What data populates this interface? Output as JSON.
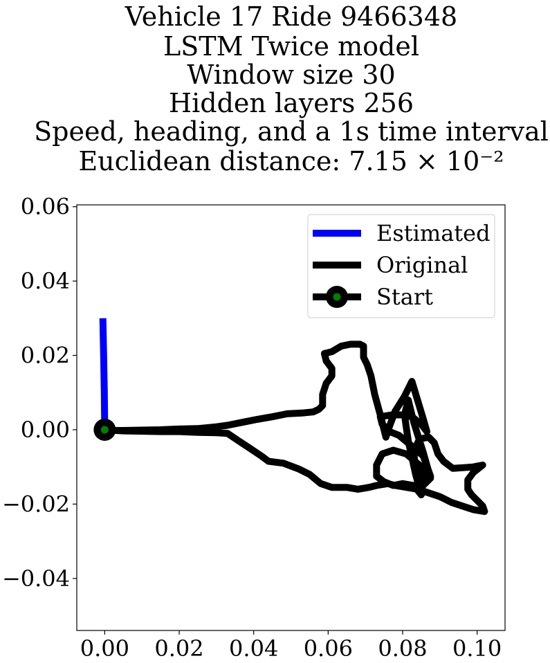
{
  "chart_data": {
    "type": "line",
    "title_lines": [
      "Vehicle 17 Ride 9466348",
      "LSTM Twice model",
      "Window size 30",
      "Hidden layers 256",
      "Speed, heading, and a 1s time interval",
      "Euclidean distance: 7.15 × 10⁻²"
    ],
    "xlabel": "",
    "ylabel": "",
    "xlim": [
      -0.0075,
      0.1075
    ],
    "ylim": [
      -0.054,
      0.0605
    ],
    "xticks": [
      0.0,
      0.02,
      0.04,
      0.06,
      0.08,
      0.1
    ],
    "xtick_labels": [
      "0.00",
      "0.02",
      "0.04",
      "0.06",
      "0.08",
      "0.10"
    ],
    "yticks": [
      0.06,
      0.04,
      0.02,
      0.0,
      -0.02,
      -0.04
    ],
    "ytick_labels": [
      "0.06",
      "0.04",
      "0.02",
      "0.00",
      "−0.02",
      "−0.04"
    ],
    "grid": false,
    "legend_position": "upper-right",
    "series": [
      {
        "name": "Estimated",
        "color": "#0000ff",
        "points": [
          [
            -0.0005,
            0.03
          ],
          [
            -0.0003,
            0.02
          ],
          [
            -0.0001,
            0.01
          ],
          [
            0.0,
            0.0
          ]
        ]
      },
      {
        "name": "Original",
        "color": "#000000",
        "points": [
          [
            0.0,
            0.0
          ],
          [
            0.005,
            -0.0003
          ],
          [
            0.01,
            -0.0004
          ],
          [
            0.015,
            -0.0005
          ],
          [
            0.02,
            -0.0005
          ],
          [
            0.025,
            -0.0007
          ],
          [
            0.03,
            -0.0008
          ],
          [
            0.033,
            -0.001
          ],
          [
            0.036,
            -0.003
          ],
          [
            0.039,
            -0.005
          ],
          [
            0.042,
            -0.007
          ],
          [
            0.044,
            -0.0085
          ],
          [
            0.048,
            -0.009
          ],
          [
            0.052,
            -0.0105
          ],
          [
            0.055,
            -0.012
          ],
          [
            0.058,
            -0.0145
          ],
          [
            0.061,
            -0.0155
          ],
          [
            0.065,
            -0.0155
          ],
          [
            0.068,
            -0.016
          ],
          [
            0.071,
            -0.0155
          ],
          [
            0.073,
            -0.015
          ],
          [
            0.076,
            -0.0145
          ],
          [
            0.078,
            -0.015
          ],
          [
            0.081,
            -0.0155
          ],
          [
            0.084,
            -0.016
          ],
          [
            0.087,
            -0.017
          ],
          [
            0.09,
            -0.018
          ],
          [
            0.093,
            -0.0195
          ],
          [
            0.096,
            -0.0205
          ],
          [
            0.099,
            -0.0215
          ],
          [
            0.102,
            -0.022
          ],
          [
            0.1015,
            -0.0205
          ],
          [
            0.1,
            -0.019
          ],
          [
            0.0985,
            -0.0175
          ],
          [
            0.0975,
            -0.016
          ],
          [
            0.0975,
            -0.0135
          ],
          [
            0.099,
            -0.0115
          ],
          [
            0.1015,
            -0.0095
          ],
          [
            0.099,
            -0.01
          ],
          [
            0.0965,
            -0.0102
          ],
          [
            0.0935,
            -0.0104
          ],
          [
            0.091,
            -0.0085
          ],
          [
            0.0895,
            -0.0065
          ],
          [
            0.0885,
            -0.0035
          ],
          [
            0.087,
            -0.002
          ],
          [
            0.0845,
            -0.0025
          ],
          [
            0.083,
            -0.006
          ],
          [
            0.0835,
            -0.011
          ],
          [
            0.0855,
            -0.015
          ],
          [
            0.0875,
            -0.013
          ],
          [
            0.0855,
            -0.006
          ],
          [
            0.083,
            0.002
          ],
          [
            0.0815,
            0.008
          ],
          [
            0.0805,
            0.004
          ],
          [
            0.0815,
            -0.003
          ],
          [
            0.0835,
            -0.012
          ],
          [
            0.085,
            -0.0175
          ],
          [
            0.083,
            -0.015
          ],
          [
            0.08,
            -0.0145
          ],
          [
            0.0775,
            -0.015
          ],
          [
            0.075,
            -0.014
          ],
          [
            0.073,
            -0.0125
          ],
          [
            0.073,
            -0.0095
          ],
          [
            0.0745,
            -0.0065
          ],
          [
            0.0775,
            -0.0055
          ],
          [
            0.081,
            -0.0065
          ],
          [
            0.0845,
            -0.0095
          ],
          [
            0.0865,
            -0.0135
          ],
          [
            0.0875,
            -0.0125
          ],
          [
            0.0855,
            -0.007
          ],
          [
            0.082,
            -0.004
          ],
          [
            0.079,
            -0.0015
          ],
          [
            0.0765,
            -0.0005
          ],
          [
            0.0745,
            0.0015
          ],
          [
            0.074,
            0.0035
          ],
          [
            0.077,
            0.004
          ],
          [
            0.08,
            0.004
          ],
          [
            0.0825,
            0.0035
          ],
          [
            0.085,
            0.0015
          ],
          [
            0.0865,
            -0.0005
          ],
          [
            0.0855,
            0.003
          ],
          [
            0.084,
            0.008
          ],
          [
            0.0825,
            0.013
          ],
          [
            0.0805,
            0.009
          ],
          [
            0.078,
            0.005
          ],
          [
            0.0765,
            0.001
          ],
          [
            0.0755,
            -0.002
          ],
          [
            0.074,
            0.004
          ],
          [
            0.0725,
            0.0095
          ],
          [
            0.0715,
            0.0145
          ],
          [
            0.0705,
            0.0175
          ],
          [
            0.0695,
            0.0195
          ],
          [
            0.0695,
            0.0225
          ],
          [
            0.0685,
            0.023
          ],
          [
            0.066,
            0.023
          ],
          [
            0.0635,
            0.0225
          ],
          [
            0.061,
            0.021
          ],
          [
            0.059,
            0.0205
          ],
          [
            0.0595,
            0.0185
          ],
          [
            0.061,
            0.0165
          ],
          [
            0.061,
            0.0145
          ],
          [
            0.0595,
            0.0125
          ],
          [
            0.0585,
            0.0095
          ],
          [
            0.0585,
            0.0065
          ],
          [
            0.0575,
            0.0055
          ],
          [
            0.056,
            0.0048
          ],
          [
            0.053,
            0.0045
          ],
          [
            0.049,
            0.0043
          ],
          [
            0.045,
            0.0035
          ],
          [
            0.041,
            0.0028
          ],
          [
            0.037,
            0.002
          ],
          [
            0.033,
            0.0012
          ],
          [
            0.03,
            0.0008
          ],
          [
            0.025,
            0.0003
          ],
          [
            0.02,
            0.0002
          ],
          [
            0.015,
            0.0
          ],
          [
            0.01,
            -0.0001
          ],
          [
            0.005,
            -0.0002
          ],
          [
            0.0,
            -0.0002
          ]
        ]
      },
      {
        "name": "Start",
        "color": "#000000",
        "marker_color": "#008000",
        "points": [
          [
            0.0,
            0.0
          ]
        ]
      }
    ]
  }
}
